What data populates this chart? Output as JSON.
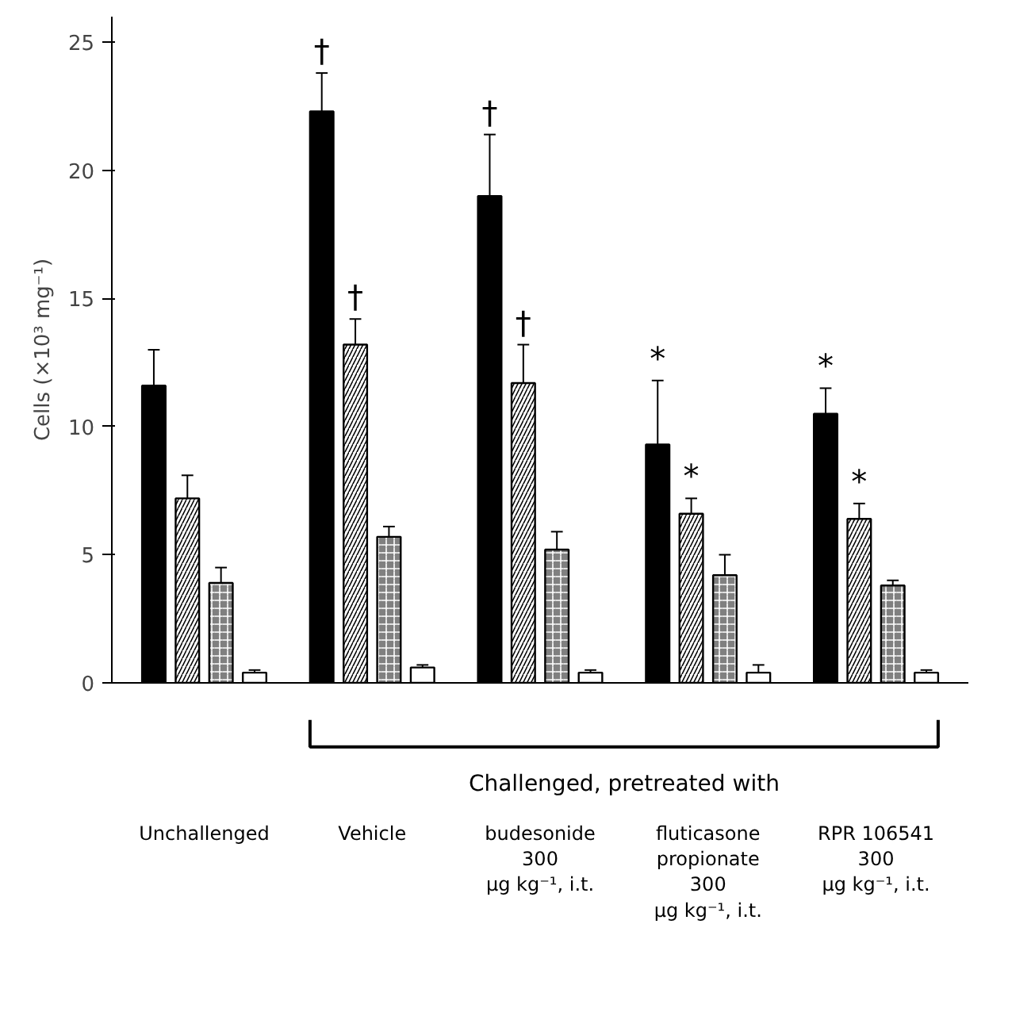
{
  "chart_data": {
    "type": "bar",
    "ylabel": "Cells (×10³ mg⁻¹)",
    "categories": [
      "Unchallenged",
      "Vehicle",
      "budesonide\n300\nµg kg⁻¹, i.t.",
      "fluticasone\npropionate\n300\nµg kg⁻¹, i.t.",
      "RPR 106541\n300\nµg kg⁻¹, i.t."
    ],
    "series": [
      {
        "color": "#000000",
        "values": [
          11.6,
          22.3,
          19.0,
          9.3,
          10.5
        ],
        "errors": [
          1.4,
          1.5,
          2.4,
          2.5,
          1.0
        ],
        "value_labels": [
          null,
          "†",
          "†",
          "*",
          "*"
        ]
      },
      {
        "color": "#ffffff",
        "values": [
          7.2,
          13.2,
          11.7,
          6.6,
          6.4
        ],
        "errors": [
          0.9,
          1.0,
          1.5,
          0.6,
          0.6
        ],
        "value_labels": [
          null,
          "†",
          "†",
          "*",
          "*"
        ]
      },
      {
        "color": "#808080",
        "values": [
          3.9,
          5.7,
          5.2,
          4.2,
          3.8
        ],
        "errors": [
          0.6,
          0.4,
          0.7,
          0.8,
          0.2
        ]
      },
      {
        "color": "#ffffff",
        "values": [
          0.4,
          0.6,
          0.4,
          0.4,
          0.4
        ],
        "errors": [
          0.1,
          0.1,
          0.1,
          0.3,
          0.1
        ]
      }
    ],
    "ylim": [
      0,
      26
    ],
    "yticks": [
      0,
      5,
      10,
      15,
      20,
      25
    ],
    "grid": false,
    "annotations": [
      "Challenged, pretreated with"
    ]
  }
}
